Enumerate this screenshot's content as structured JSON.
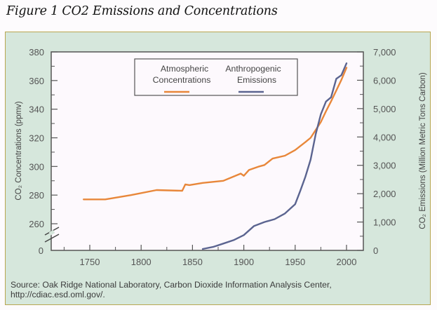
{
  "figure_title": "Figure 1 CO2 Emissions and Concentrations",
  "source_lines": [
    "Source: Oak Ridge National Laboratory, Carbon Dioxide Information Analysis Center,",
    "http://cdiac.esd.oml.gov/."
  ],
  "colors": {
    "concentrations": "#e8873a",
    "emissions": "#5b6490",
    "panel_bg": "#d6e7dc",
    "panel_border": "#b8a650",
    "plot_bg": "#fdf9fd",
    "axis": "#555555",
    "tick_text": "#555555"
  },
  "chart_data": {
    "type": "line",
    "title": "Figure 1 CO2 Emissions and Concentrations",
    "xlabel": "",
    "ylabel": "CO₂ Concentrations (ppmv)",
    "y2label": "CO₂ Emissions (Million Metric Tons Carbon)",
    "xlim": [
      1713,
      2018
    ],
    "ylim": [
      260,
      380
    ],
    "y_axis_break": true,
    "y_bottom_label": "0",
    "y2lim": [
      0,
      7000
    ],
    "x_ticks": [
      1750,
      1800,
      1850,
      1900,
      1950,
      2000
    ],
    "x_tick_labels": [
      "1750",
      "1800",
      "1850",
      "1900",
      "1950",
      "2000"
    ],
    "y_ticks": [
      260,
      280,
      300,
      320,
      340,
      360,
      380
    ],
    "y_tick_labels": [
      "260",
      "280",
      "300",
      "320",
      "340",
      "360",
      "380"
    ],
    "y2_ticks": [
      0,
      1000,
      2000,
      3000,
      4000,
      5000,
      6000,
      7000
    ],
    "y2_tick_labels": [
      "0",
      "1,000",
      "2,000",
      "3,000",
      "4,000",
      "5,000",
      "6,000",
      "7,000"
    ],
    "grid": false,
    "legend": {
      "placement": "top-center",
      "entries": [
        {
          "line1": "Atmospheric",
          "line2": "Concentrations",
          "series": "concentrations"
        },
        {
          "line1": "Anthropogenic",
          "line2": "Emissions",
          "series": "emissions"
        }
      ]
    },
    "series": [
      {
        "name": "Atmospheric Concentrations",
        "key": "concentrations",
        "axis": "left",
        "unit": "ppmv",
        "x": [
          1744,
          1765,
          1790,
          1815,
          1840,
          1843,
          1847,
          1860,
          1880,
          1897,
          1900,
          1905,
          1915,
          1920,
          1928,
          1940,
          1950,
          1960,
          1965,
          1970,
          1975,
          1980,
          1985,
          1990,
          1995,
          2000
        ],
        "y": [
          277,
          277,
          280,
          283.5,
          283,
          287.5,
          287,
          288.5,
          290,
          295,
          293.5,
          297.5,
          300,
          301,
          305.5,
          307.5,
          311.5,
          317,
          320,
          325.5,
          331,
          338.5,
          345.5,
          353,
          360.5,
          369
        ]
      },
      {
        "name": "Anthropogenic Emissions",
        "key": "emissions",
        "axis": "right",
        "unit": "Million Metric Tons Carbon",
        "x": [
          1860,
          1870,
          1880,
          1890,
          1900,
          1905,
          1910,
          1920,
          1930,
          1940,
          1950,
          1955,
          1960,
          1965,
          1970,
          1975,
          1980,
          1985,
          1990,
          1995,
          2000
        ],
        "y": [
          50,
          120,
          240,
          360,
          540,
          700,
          860,
          1000,
          1100,
          1300,
          1630,
          2100,
          2600,
          3200,
          4100,
          4800,
          5250,
          5400,
          6050,
          6180,
          6600
        ]
      }
    ]
  }
}
